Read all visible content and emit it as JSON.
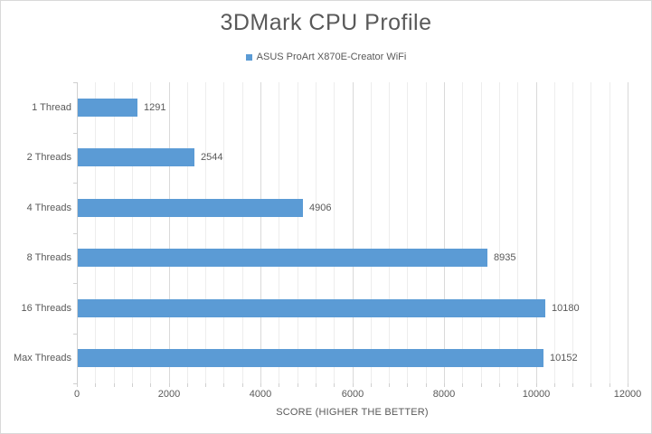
{
  "title": "3DMark CPU Profile",
  "legend": {
    "label": "ASUS ProArt X870E-Creator WiFi",
    "marker_color": "#5B9BD5",
    "position": "top-center"
  },
  "chart_data": {
    "type": "bar",
    "orientation": "horizontal",
    "title": "3DMark CPU Profile",
    "series_name": "ASUS ProArt X870E-Creator WiFi",
    "categories": [
      "1 Thread",
      "2 Threads",
      "4 Threads",
      "8 Threads",
      "16 Threads",
      "Max Threads"
    ],
    "values": [
      1291,
      2544,
      4906,
      8935,
      10180,
      10152
    ],
    "data_labels": [
      "1291",
      "2544",
      "4906",
      "8935",
      "10180",
      "10152"
    ],
    "xlabel": "SCORE (HIGHER THE BETTER)",
    "ylabel": "",
    "xlim": [
      0,
      12000
    ],
    "x_major_ticks": [
      0,
      2000,
      4000,
      6000,
      8000,
      10000,
      12000
    ],
    "x_major_unit": 2000,
    "x_minor_unit": 400,
    "grid": true,
    "legend_position": "top",
    "bar_color": "#5B9BD5"
  },
  "colors": {
    "bar": "#5B9BD5",
    "title_text": "#595959",
    "axis_text": "#595959",
    "major_gridline": "#D9D9D9",
    "minor_gridline": "#EDEDED",
    "axis_line": "#D0D0D0",
    "chart_border": "#D9D9D9",
    "background": "#FFFFFF"
  }
}
